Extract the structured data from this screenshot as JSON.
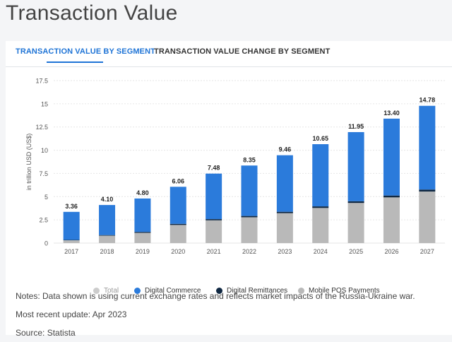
{
  "page_title": "Transaction Value",
  "tabs": [
    {
      "label": "TRANSACTION VALUE BY SEGMENT",
      "active": true
    },
    {
      "label": "TRANSACTION VALUE CHANGE BY SEGMENT",
      "active": false
    }
  ],
  "colors": {
    "total": "#cccccc",
    "digital_commerce": "#2b7bdb",
    "digital_remittances": "#102842",
    "mobile_pos": "#b9b9b9",
    "grid": "#e6e6e6",
    "accent": "#1f74d6"
  },
  "chart_data": {
    "type": "bar",
    "stacked": true,
    "ylabel": "in trillion USD (US$)",
    "ylim": [
      0,
      17.5
    ],
    "yticks": [
      "0",
      "2.5",
      "5",
      "7.5",
      "10",
      "12.5",
      "15",
      "17.5"
    ],
    "categories": [
      "2017",
      "2018",
      "2019",
      "2020",
      "2021",
      "2022",
      "2023",
      "2024",
      "2025",
      "2026",
      "2027"
    ],
    "totals": [
      "3.36",
      "4.10",
      "4.80",
      "6.06",
      "7.48",
      "8.35",
      "9.46",
      "10.65",
      "11.95",
      "13.40",
      "14.78"
    ],
    "series": [
      {
        "name": "Mobile POS Payments",
        "key": "mobile_pos",
        "values": [
          0.3,
          0.8,
          1.1,
          1.95,
          2.45,
          2.78,
          3.22,
          3.78,
          4.32,
          4.92,
          5.55
        ]
      },
      {
        "name": "Digital Remittances",
        "key": "digital_remittances",
        "values": [
          0.04,
          0.06,
          0.1,
          0.12,
          0.13,
          0.14,
          0.15,
          0.17,
          0.18,
          0.2,
          0.21
        ]
      },
      {
        "name": "Digital Commerce",
        "key": "digital_commerce",
        "values": [
          3.02,
          3.24,
          3.6,
          3.99,
          4.9,
          5.43,
          6.09,
          6.7,
          7.45,
          8.28,
          9.02
        ]
      }
    ],
    "legend": [
      {
        "label": "Total",
        "key": "total"
      },
      {
        "label": "Digital Commerce",
        "key": "digital_commerce"
      },
      {
        "label": "Digital Remittances",
        "key": "digital_remittances"
      },
      {
        "label": "Mobile POS Payments",
        "key": "mobile_pos"
      }
    ]
  },
  "notes": {
    "note": "Notes: Data shown is using current exchange rates and reflects market impacts of the Russia-Ukraine war.",
    "update": "Most recent update: Apr 2023",
    "source": "Source: Statista"
  }
}
